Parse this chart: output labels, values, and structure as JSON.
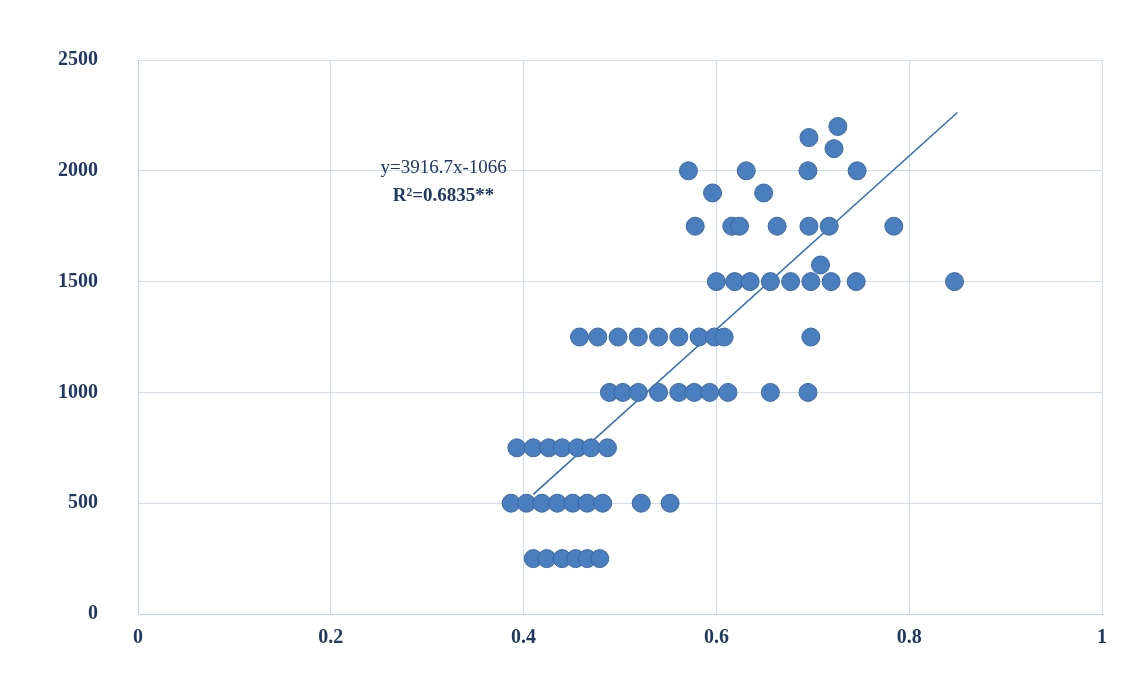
{
  "chart_data": {
    "type": "scatter",
    "xlim": [
      0,
      1
    ],
    "xticks": [
      0,
      0.2,
      0.4,
      0.6,
      0.8,
      1
    ],
    "ylim": [
      0,
      2500
    ],
    "yticks": [
      0,
      500,
      1000,
      1500,
      2000,
      2500
    ],
    "grid": true,
    "legend": false,
    "marker": "circle",
    "annotations": [
      "y=3916.7x-1066",
      "R²=0.6835**"
    ],
    "series": [
      {
        "type": "scatter",
        "color": "#4a7ebf",
        "x": [
          0.41,
          0.424,
          0.44,
          0.454,
          0.466,
          0.479,
          0.387,
          0.403,
          0.419,
          0.435,
          0.451,
          0.466,
          0.482,
          0.522,
          0.552,
          0.393,
          0.41,
          0.426,
          0.44,
          0.456,
          0.47,
          0.487,
          0.489,
          0.503,
          0.519,
          0.54,
          0.561,
          0.577,
          0.593,
          0.612,
          0.656,
          0.695,
          0.458,
          0.477,
          0.498,
          0.519,
          0.54,
          0.561,
          0.582,
          0.598,
          0.608,
          0.698,
          0.6,
          0.619,
          0.635,
          0.656,
          0.677,
          0.698,
          0.719,
          0.745,
          0.847,
          0.708,
          0.578,
          0.616,
          0.624,
          0.663,
          0.696,
          0.717,
          0.784,
          0.596,
          0.649,
          0.571,
          0.631,
          0.695,
          0.746,
          0.722,
          0.696,
          0.726
        ],
        "values": [
          250,
          250,
          250,
          250,
          250,
          250,
          500,
          500,
          500,
          500,
          500,
          500,
          500,
          500,
          500,
          750,
          750,
          750,
          750,
          750,
          750,
          750,
          1000,
          1000,
          1000,
          1000,
          1000,
          1000,
          1000,
          1000,
          1000,
          1000,
          1250,
          1250,
          1250,
          1250,
          1250,
          1250,
          1250,
          1250,
          1250,
          1250,
          1500,
          1500,
          1500,
          1500,
          1500,
          1500,
          1500,
          1500,
          1500,
          1575,
          1750,
          1750,
          1750,
          1750,
          1750,
          1750,
          1750,
          1900,
          1900,
          2000,
          2000,
          2000,
          2000,
          2100,
          2150,
          2200
        ]
      },
      {
        "type": "line",
        "color": "#2e6db4",
        "marker": "none",
        "line_style": "solid",
        "x": [
          0.41,
          0.85
        ],
        "values": [
          540,
          2263
        ]
      }
    ]
  }
}
